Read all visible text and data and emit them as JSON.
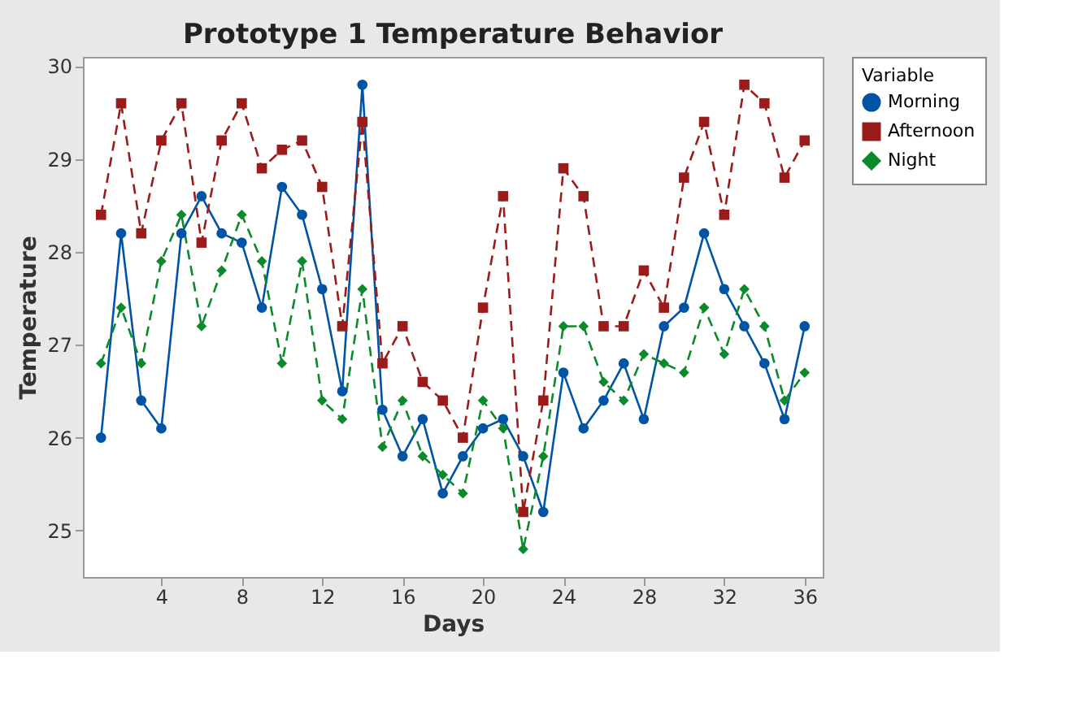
{
  "chart_data": {
    "type": "line",
    "title": "Prototype 1 Temperature Behavior",
    "xlabel": "Days",
    "ylabel": "Temperature",
    "legend_title": "Variable",
    "legend": "right",
    "x": [
      1,
      2,
      3,
      4,
      5,
      6,
      7,
      8,
      9,
      10,
      11,
      12,
      13,
      14,
      15,
      16,
      17,
      18,
      19,
      20,
      21,
      22,
      23,
      24,
      25,
      26,
      27,
      28,
      29,
      30,
      31,
      32,
      33,
      34,
      35,
      36
    ],
    "xlim": [
      0.1,
      36.9
    ],
    "xticks": [
      4,
      8,
      12,
      16,
      20,
      24,
      28,
      32,
      36
    ],
    "ylim": [
      24.5,
      30.1
    ],
    "yticks": [
      25,
      26,
      27,
      28,
      29,
      30
    ],
    "grid": false,
    "series": [
      {
        "name": "Morning",
        "color": "#0054a6",
        "marker": "circle",
        "line_style": "solid",
        "values": [
          26.0,
          28.2,
          26.4,
          26.1,
          28.2,
          28.6,
          28.2,
          28.1,
          27.4,
          28.7,
          28.4,
          27.6,
          26.5,
          29.8,
          26.3,
          25.8,
          26.2,
          25.4,
          25.8,
          26.1,
          26.2,
          25.8,
          25.2,
          26.7,
          26.1,
          26.4,
          26.8,
          26.2,
          27.2,
          27.4,
          28.2,
          27.6,
          27.2,
          26.8,
          26.2,
          27.2
        ]
      },
      {
        "name": "Afternoon",
        "color": "#9b1b1b",
        "marker": "square",
        "line_style": "dashed",
        "values": [
          28.4,
          29.6,
          28.2,
          29.2,
          29.6,
          28.1,
          29.2,
          29.6,
          28.9,
          29.1,
          29.2,
          28.7,
          27.2,
          29.4,
          26.8,
          27.2,
          26.6,
          26.4,
          26.0,
          27.4,
          28.6,
          25.2,
          26.4,
          28.9,
          28.6,
          27.2,
          27.2,
          27.8,
          27.4,
          28.8,
          29.4,
          28.4,
          29.8,
          29.6,
          28.8,
          29.2
        ]
      },
      {
        "name": "Night",
        "color": "#0a8a2a",
        "marker": "diamond",
        "line_style": "dashed",
        "values": [
          26.8,
          27.4,
          26.8,
          27.9,
          28.4,
          27.2,
          27.8,
          28.4,
          27.9,
          26.8,
          27.9,
          26.4,
          26.2,
          27.6,
          25.9,
          26.4,
          25.8,
          25.6,
          25.4,
          26.4,
          26.1,
          24.8,
          25.8,
          27.2,
          27.2,
          26.6,
          26.4,
          26.9,
          26.8,
          26.7,
          27.4,
          26.9,
          27.6,
          27.2,
          26.4,
          26.7
        ]
      }
    ]
  }
}
